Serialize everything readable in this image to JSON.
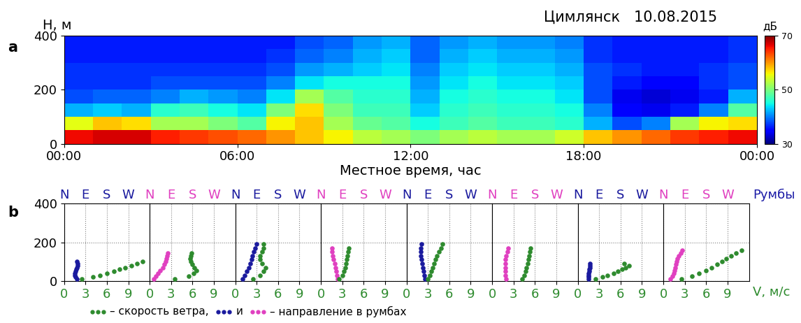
{
  "chart_data": [
    {
      "type": "heatmap",
      "panel_label": "a",
      "title": "Цимлянск   10.08.2015",
      "xlabel": "Местное время, час",
      "ylabel": "H, м",
      "x_bins": [
        0,
        1,
        2,
        3,
        4,
        5,
        6,
        7,
        8,
        9,
        10,
        11,
        12,
        13,
        14,
        15,
        16,
        17,
        18,
        19,
        20,
        21,
        22,
        23,
        24
      ],
      "y_bins": [
        0,
        50,
        100,
        150,
        200,
        250,
        300,
        350,
        400
      ],
      "cells": [
        [
          66,
          67,
          67,
          65,
          64,
          63,
          62,
          60,
          58,
          56,
          53,
          52,
          50,
          52,
          53,
          52,
          52,
          54,
          58,
          60,
          62,
          64,
          65,
          66
        ],
        [
          55,
          58,
          57,
          52,
          52,
          50,
          48,
          56,
          58,
          52,
          49,
          48,
          45,
          47,
          48,
          47,
          47,
          46,
          42,
          38,
          40,
          52,
          56,
          57
        ],
        [
          42,
          43,
          42,
          46,
          47,
          45,
          44,
          50,
          57,
          50,
          47,
          47,
          43,
          46,
          47,
          46,
          46,
          45,
          40,
          35,
          34,
          36,
          40,
          48
        ],
        [
          38,
          39,
          39,
          40,
          42,
          41,
          40,
          44,
          52,
          48,
          46,
          46,
          42,
          45,
          46,
          45,
          45,
          44,
          38,
          34,
          33,
          34,
          36,
          42
        ],
        [
          37,
          37,
          37,
          38,
          38,
          38,
          38,
          40,
          44,
          45,
          45,
          45,
          41,
          44,
          45,
          44,
          44,
          43,
          38,
          36,
          35,
          35,
          37,
          38
        ],
        [
          37,
          37,
          37,
          37,
          37,
          37,
          37,
          38,
          41,
          42,
          43,
          44,
          40,
          43,
          44,
          43,
          43,
          42,
          38,
          37,
          36,
          36,
          37,
          38
        ],
        [
          36,
          36,
          36,
          36,
          36,
          36,
          36,
          37,
          39,
          40,
          42,
          43,
          39,
          42,
          43,
          42,
          42,
          41,
          37,
          36,
          36,
          36,
          36,
          37
        ],
        [
          36,
          36,
          36,
          36,
          36,
          36,
          36,
          36,
          38,
          39,
          41,
          42,
          39,
          41,
          42,
          41,
          41,
          40,
          37,
          36,
          36,
          36,
          36,
          37
        ]
      ],
      "xlim": [
        0,
        24
      ],
      "xticks": [
        {
          "value": 0,
          "label": "00:00"
        },
        {
          "value": 6,
          "label": "06:00"
        },
        {
          "value": 12,
          "label": "12:00"
        },
        {
          "value": 18,
          "label": "18:00"
        },
        {
          "value": 24,
          "label": "00:00"
        }
      ],
      "ylim": [
        0,
        400
      ],
      "yticks": [
        0,
        200,
        400
      ],
      "colorbar_label": "дБ",
      "colorbar_range": [
        30,
        70
      ],
      "colorbar_ticks": [
        30,
        50,
        70
      ]
    },
    {
      "type": "scatter",
      "panel_label": "b",
      "xlabel": "V, м/с",
      "rumbs_label": "Румбы",
      "rumbs": [
        {
          "value": 0,
          "label": "N"
        },
        {
          "value": 3,
          "label": "E"
        },
        {
          "value": 6,
          "label": "S"
        },
        {
          "value": 9,
          "label": "W"
        }
      ],
      "speed_color": "#2e8b2e",
      "xlim": [
        0,
        12
      ],
      "xticks": [
        0,
        3,
        6,
        9
      ],
      "ylim": [
        0,
        400
      ],
      "yticks": [
        0,
        200,
        400
      ],
      "grid": true,
      "panels": [
        {
          "direction_color": "#1a1a9e",
          "y": [
            10,
            20,
            30,
            40,
            50,
            60,
            70,
            80,
            90,
            100
          ],
          "speed": [
            2.5,
            4,
            5,
            6,
            7,
            7.8,
            8.6,
            9.4,
            10.2,
            11
          ],
          "direction": [
            1.8,
            1.6,
            1.5,
            1.5,
            1.6,
            1.7,
            1.8,
            1.9,
            1.9,
            1.8
          ]
        },
        {
          "direction_color": "#e040c0",
          "y": [
            10,
            25,
            40,
            55,
            70,
            85,
            100,
            115,
            130,
            145
          ],
          "speed": [
            3.5,
            5.5,
            6.2,
            6.5,
            6.3,
            6.0,
            5.8,
            5.7,
            5.8,
            5.9
          ],
          "direction": [
            0.6,
            0.9,
            1.2,
            1.5,
            1.8,
            2.0,
            2.2,
            2.3,
            2.4,
            2.5
          ]
        },
        {
          "direction_color": "#1a1a9e",
          "y": [
            10,
            30,
            50,
            70,
            90,
            110,
            130,
            150,
            170,
            190
          ],
          "speed": [
            2.5,
            3.5,
            4,
            4.2,
            3.8,
            3.5,
            3.5,
            3.8,
            4.0,
            4.0
          ],
          "direction": [
            1.0,
            1.3,
            1.6,
            1.9,
            2.1,
            2.3,
            2.4,
            2.6,
            2.8,
            3.0
          ]
        },
        {
          "direction_color": "#e040c0",
          "y": [
            10,
            30,
            50,
            70,
            90,
            110,
            130,
            150,
            170
          ],
          "speed": [
            2.5,
            3.0,
            3.2,
            3.4,
            3.5,
            3.6,
            3.7,
            3.8,
            3.9
          ],
          "direction": [
            2.3,
            2.2,
            2.1,
            2.0,
            1.9,
            1.8,
            1.7,
            1.6,
            1.6
          ]
        },
        {
          "direction_color": "#1a1a9e",
          "y": [
            10,
            30,
            50,
            70,
            90,
            110,
            130,
            150,
            170,
            190
          ],
          "speed": [
            3.0,
            3.3,
            3.5,
            3.7,
            3.9,
            4.1,
            4.3,
            4.5,
            4.8,
            5.0
          ],
          "direction": [
            2.6,
            2.5,
            2.4,
            2.3,
            2.2,
            2.1,
            2.0,
            2.0,
            2.0,
            2.1
          ]
        },
        {
          "direction_color": "#e040c0",
          "y": [
            10,
            30,
            50,
            70,
            90,
            110,
            130,
            150,
            170
          ],
          "speed": [
            4.2,
            4.5,
            4.7,
            4.8,
            5.0,
            5.1,
            5.2,
            5.3,
            5.4
          ],
          "direction": [
            2.0,
            1.9,
            1.9,
            1.9,
            1.9,
            1.9,
            2.0,
            2.1,
            2.2
          ]
        },
        {
          "direction_color": "#1a1a9e",
          "y": [
            10,
            20,
            30,
            40,
            50,
            60,
            70,
            80,
            90
          ],
          "speed": [
            2.5,
            3.5,
            4.2,
            5.0,
            5.6,
            6.2,
            6.7,
            7.2,
            6.5
          ],
          "direction": [
            1.5,
            1.5,
            1.5,
            1.5,
            1.6,
            1.6,
            1.7,
            1.7,
            1.7
          ]
        },
        {
          "direction_color": "#e040c0",
          "y": [
            10,
            25,
            40,
            55,
            70,
            85,
            100,
            115,
            130,
            145,
            160
          ],
          "speed": [
            2.5,
            4,
            5,
            6,
            6.8,
            7.5,
            8.2,
            8.8,
            9.5,
            10.2,
            11
          ],
          "direction": [
            1.0,
            1.3,
            1.5,
            1.6,
            1.7,
            1.8,
            1.9,
            2.0,
            2.2,
            2.4,
            2.6
          ]
        }
      ],
      "legend_entries": [
        {
          "text": "– скорость ветра,",
          "color": "#2e8b2e"
        },
        {
          "text": "и",
          "color": "#1a1a9e"
        },
        {
          "text": "– направление в румбах",
          "color": "#e040c0"
        }
      ]
    }
  ]
}
